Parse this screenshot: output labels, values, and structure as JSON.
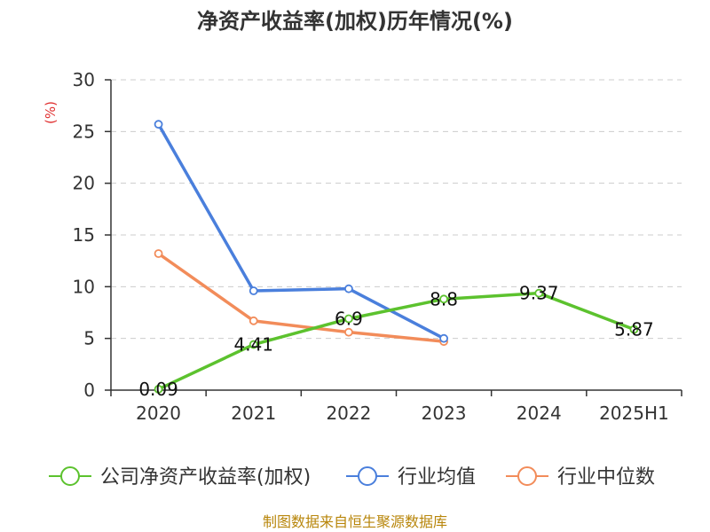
{
  "chart_data": {
    "type": "line",
    "title": "净资产收益率(加权)历年情况(%)",
    "ylabel": "(%)",
    "xlabel": "",
    "categories": [
      "2020",
      "2021",
      "2022",
      "2023",
      "2024",
      "2025H1"
    ],
    "ylim": [
      0,
      30
    ],
    "yticks": [
      0,
      5,
      10,
      15,
      20,
      25,
      30
    ],
    "grid": true,
    "legend_position": "bottom",
    "series": [
      {
        "name": "公司净资产收益率(加权)",
        "color": "#5cc22e",
        "values": [
          0.09,
          4.41,
          6.9,
          8.8,
          9.37,
          5.87
        ],
        "labels": [
          "0.09",
          "4.41",
          "6.9",
          "8.8",
          "9.37",
          "5.87"
        ]
      },
      {
        "name": "行业均值",
        "color": "#4a7fdc",
        "values": [
          25.7,
          9.6,
          9.8,
          5.0,
          null,
          null
        ]
      },
      {
        "name": "行业中位数",
        "color": "#f28c5a",
        "values": [
          13.2,
          6.7,
          5.6,
          4.7,
          null,
          null
        ]
      }
    ]
  },
  "source": "制图数据来自恒生聚源数据库"
}
